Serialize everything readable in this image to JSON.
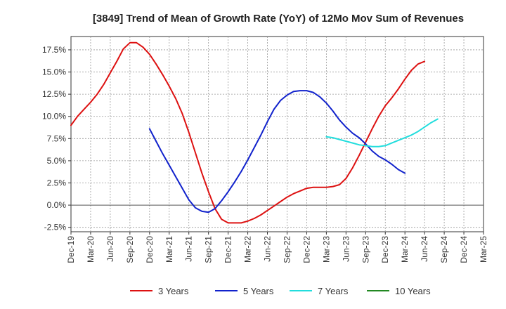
{
  "chart_data": {
    "type": "line",
    "title": "[3849]  Trend of Mean of Growth Rate (YoY) of 12Mo Mov Sum of Revenues",
    "xlabel": "",
    "ylabel": "",
    "ylim": [
      -3.0,
      19.0
    ],
    "y_ticks": [
      -2.5,
      0.0,
      2.5,
      5.0,
      7.5,
      10.0,
      12.5,
      15.0,
      17.5
    ],
    "y_tick_labels": [
      "-2.5%",
      "0.0%",
      "2.5%",
      "5.0%",
      "7.5%",
      "10.0%",
      "12.5%",
      "15.0%",
      "17.5%"
    ],
    "x_tick_labels": [
      "Dec-19",
      "Mar-20",
      "Jun-20",
      "Sep-20",
      "Dec-20",
      "Mar-21",
      "Jun-21",
      "Sep-21",
      "Dec-21",
      "Mar-22",
      "Jun-22",
      "Sep-22",
      "Dec-22",
      "Mar-23",
      "Jun-23",
      "Sep-23",
      "Dec-23",
      "Mar-24",
      "Jun-24",
      "Sep-24",
      "Dec-24",
      "Mar-25"
    ],
    "x_start": "Dec-19",
    "grid": true,
    "legend_position": "bottom",
    "series": [
      {
        "name": "3 Years",
        "color": "#dd1111",
        "start_index": 0,
        "values": [
          9.0,
          10.0,
          10.8,
          11.6,
          12.5,
          13.6,
          14.9,
          16.2,
          17.6,
          18.3,
          18.3,
          17.8,
          17.0,
          15.9,
          14.7,
          13.4,
          12.0,
          10.3,
          8.2,
          5.9,
          3.6,
          1.5,
          -0.4,
          -1.6,
          -2.0,
          -2.0,
          -2.0,
          -1.8,
          -1.5,
          -1.1,
          -0.6,
          -0.1,
          0.4,
          0.9,
          1.3,
          1.6,
          1.9,
          2.0,
          2.0,
          2.0,
          2.1,
          2.3,
          3.0,
          4.2,
          5.6,
          7.1,
          8.6,
          10.0,
          11.2,
          12.1,
          13.1,
          14.2,
          15.2,
          15.9,
          16.2
        ]
      },
      {
        "name": "5 Years",
        "color": "#1122cc",
        "start_index": 12,
        "values": [
          8.6,
          7.2,
          5.8,
          4.5,
          3.2,
          1.9,
          0.6,
          -0.3,
          -0.7,
          -0.8,
          -0.4,
          0.5,
          1.5,
          2.6,
          3.8,
          5.1,
          6.5,
          7.9,
          9.4,
          10.8,
          11.8,
          12.4,
          12.8,
          12.9,
          12.9,
          12.7,
          12.2,
          11.5,
          10.6,
          9.6,
          8.8,
          8.1,
          7.6,
          6.9,
          6.1,
          5.5,
          5.1,
          4.6,
          4.0,
          3.6
        ]
      },
      {
        "name": "7 Years",
        "color": "#22dddd",
        "start_index": 39,
        "values": [
          7.7,
          7.6,
          7.4,
          7.2,
          7.0,
          6.8,
          6.7,
          6.6,
          6.6,
          6.7,
          7.0,
          7.3,
          7.6,
          7.9,
          8.3,
          8.8,
          9.3,
          9.7
        ]
      },
      {
        "name": "10 Years",
        "color": "#228822",
        "start_index": 0,
        "values": []
      }
    ]
  }
}
